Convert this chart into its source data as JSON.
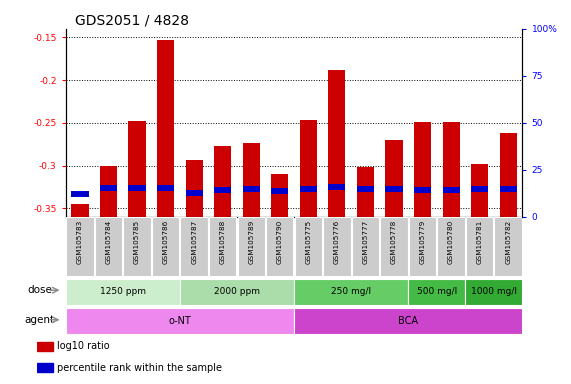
{
  "title": "GDS2051 / 4828",
  "samples": [
    "GSM105783",
    "GSM105784",
    "GSM105785",
    "GSM105786",
    "GSM105787",
    "GSM105788",
    "GSM105789",
    "GSM105790",
    "GSM105775",
    "GSM105776",
    "GSM105777",
    "GSM105778",
    "GSM105779",
    "GSM105780",
    "GSM105781",
    "GSM105782"
  ],
  "log10_ratio": [
    -0.345,
    -0.3,
    -0.248,
    -0.153,
    -0.293,
    -0.277,
    -0.273,
    -0.31,
    -0.247,
    -0.188,
    -0.302,
    -0.27,
    -0.249,
    -0.249,
    -0.298,
    -0.262
  ],
  "blue_positions": [
    -0.333,
    -0.326,
    -0.326,
    -0.326,
    -0.332,
    -0.328,
    -0.327,
    -0.33,
    -0.327,
    -0.325,
    -0.327,
    -0.327,
    -0.328,
    -0.328,
    -0.327,
    -0.327
  ],
  "bar_color": "#cc0000",
  "blue_color": "#0000cc",
  "ylim_left": [
    -0.36,
    -0.14
  ],
  "ylim_right": [
    0,
    100
  ],
  "yticks_left": [
    -0.35,
    -0.3,
    -0.25,
    -0.2,
    -0.15
  ],
  "yticks_right": [
    0,
    25,
    50,
    75,
    100
  ],
  "ytick_labels_right": [
    "0",
    "25",
    "50",
    "75",
    "100%"
  ],
  "dose_groups": [
    {
      "label": "1250 ppm",
      "start": 0,
      "end": 3,
      "color": "#cceecc"
    },
    {
      "label": "2000 ppm",
      "start": 4,
      "end": 7,
      "color": "#aaddaa"
    },
    {
      "label": "250 mg/l",
      "start": 8,
      "end": 11,
      "color": "#55cc55"
    },
    {
      "label": "500 mg/l",
      "start": 12,
      "end": 13,
      "color": "#33bb33"
    },
    {
      "label": "1000 mg/l",
      "start": 14,
      "end": 15,
      "color": "#22aa22"
    }
  ],
  "agent_groups": [
    {
      "label": "o-NT",
      "start": 0,
      "end": 7,
      "color": "#ee88ee"
    },
    {
      "label": "BCA",
      "start": 8,
      "end": 15,
      "color": "#dd44dd"
    }
  ],
  "legend_items": [
    {
      "label": "log10 ratio",
      "color": "#cc0000"
    },
    {
      "label": "percentile rank within the sample",
      "color": "#0000cc"
    }
  ],
  "title_fontsize": 10,
  "tick_fontsize": 6.5,
  "label_fontsize": 7.5
}
